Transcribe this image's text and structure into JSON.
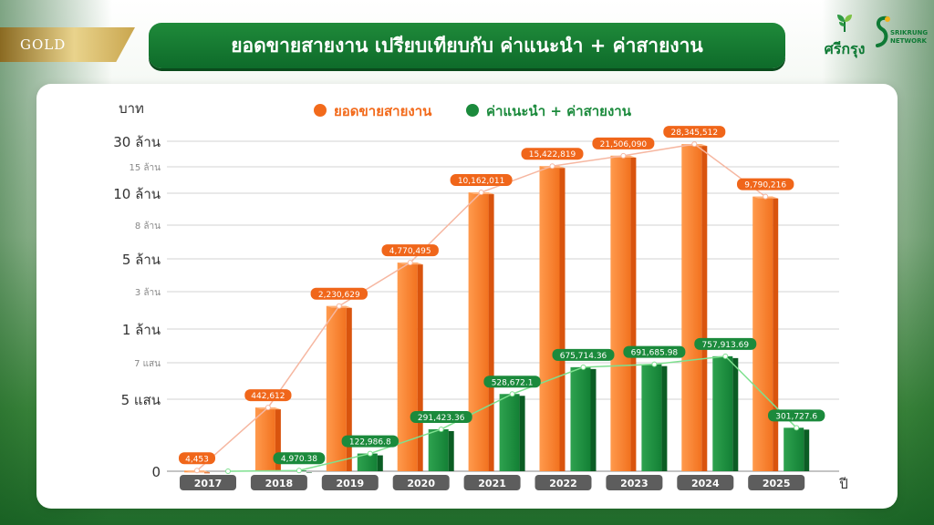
{
  "badge": {
    "label": "GOLD"
  },
  "header": {
    "title": "ยอดขายสายงาน เปรียบเทียบกับ ค่าแนะนำ + ค่าสายงาน"
  },
  "logos": {
    "srikrung": "ศรีกรุง",
    "network_line1": "SRIKRUNG",
    "network_line2": "NETWORK"
  },
  "colors": {
    "sales": "#f26a1b",
    "commission": "#1b8a3c"
  },
  "chart_data": {
    "type": "bar",
    "ylabel": "บาท",
    "xlabel": "ปี",
    "y_scale": "piecewise (non-linear tick spacing)",
    "y_ticks": [
      {
        "value": 0,
        "label": "0",
        "major": true
      },
      {
        "value": 500000,
        "label": "5 แสน",
        "major": true
      },
      {
        "value": 700000,
        "label": "7 แสน",
        "major": false
      },
      {
        "value": 1000000,
        "label": "1 ล้าน",
        "major": true
      },
      {
        "value": 3000000,
        "label": "3 ล้าน",
        "major": false
      },
      {
        "value": 5000000,
        "label": "5 ล้าน",
        "major": true
      },
      {
        "value": 8000000,
        "label": "8 ล้าน",
        "major": false
      },
      {
        "value": 10000000,
        "label": "10 ล้าน",
        "major": true
      },
      {
        "value": 15000000,
        "label": "15 ล้าน",
        "major": false
      },
      {
        "value": 30000000,
        "label": "30 ล้าน",
        "major": true
      }
    ],
    "categories": [
      "2017",
      "2018",
      "2019",
      "2020",
      "2021",
      "2022",
      "2023",
      "2024",
      "2025"
    ],
    "series": [
      {
        "name": "ยอดขายสายงาน",
        "values": [
          4453,
          442612,
          2230629,
          4770495,
          10162011,
          15422819,
          21506090,
          28345512,
          9790216
        ],
        "labels": [
          "4,453",
          "442,612",
          "2,230,629",
          "4,770,495",
          "10,162,011",
          "15,422,819",
          "21,506,090",
          "28,345,512",
          "9,790,216"
        ]
      },
      {
        "name": "ค่าแนะนำ + ค่าสายงาน",
        "values": [
          0,
          4970.38,
          122986.8,
          291423.36,
          528672.1,
          675714.36,
          691685.98,
          757913.69,
          301727.6
        ],
        "labels": [
          "",
          "4,970.38",
          "122,986.8",
          "291,423.36",
          "528,672.1",
          "675,714.36",
          "691,685.98",
          "757,913.69",
          "301,727.6"
        ]
      }
    ],
    "legend": "top-center",
    "grid": true
  }
}
